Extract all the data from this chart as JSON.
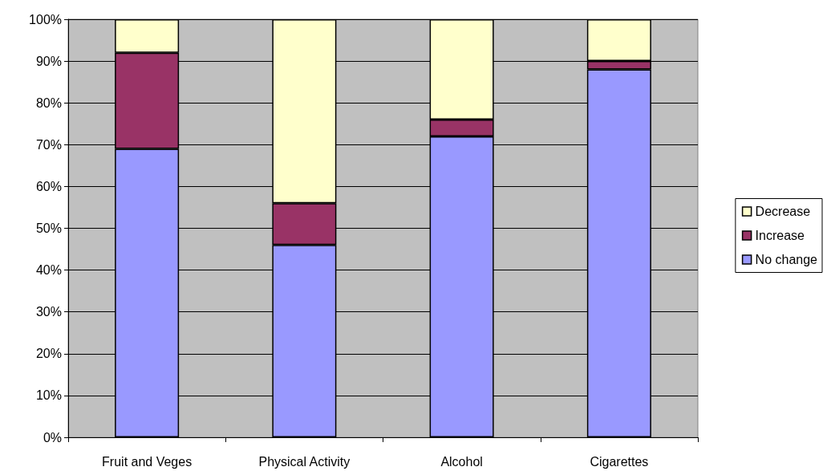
{
  "chart_data": {
    "type": "bar",
    "stacked": true,
    "categories": [
      "Fruit and Veges",
      "Physical Activity",
      "Alcohol",
      "Cigarettes"
    ],
    "series": [
      {
        "name": "No change",
        "color": "#9999ff",
        "values": [
          69,
          46,
          72,
          88
        ]
      },
      {
        "name": "Increase",
        "color": "#993366",
        "values": [
          23,
          10,
          4,
          2
        ]
      },
      {
        "name": "Decrease",
        "color": "#ffffcc",
        "values": [
          8,
          44,
          24,
          10
        ]
      }
    ],
    "ylim": [
      0,
      100
    ],
    "yticks": [
      {
        "value": 0,
        "label": "0%"
      },
      {
        "value": 10,
        "label": "10%"
      },
      {
        "value": 20,
        "label": "20%"
      },
      {
        "value": 30,
        "label": "30%"
      },
      {
        "value": 40,
        "label": "40%"
      },
      {
        "value": 50,
        "label": "50%"
      },
      {
        "value": 60,
        "label": "60%"
      },
      {
        "value": 70,
        "label": "70%"
      },
      {
        "value": 80,
        "label": "80%"
      },
      {
        "value": 90,
        "label": "90%"
      },
      {
        "value": 100,
        "label": "100%"
      }
    ],
    "grid": "y",
    "legend": "right"
  }
}
